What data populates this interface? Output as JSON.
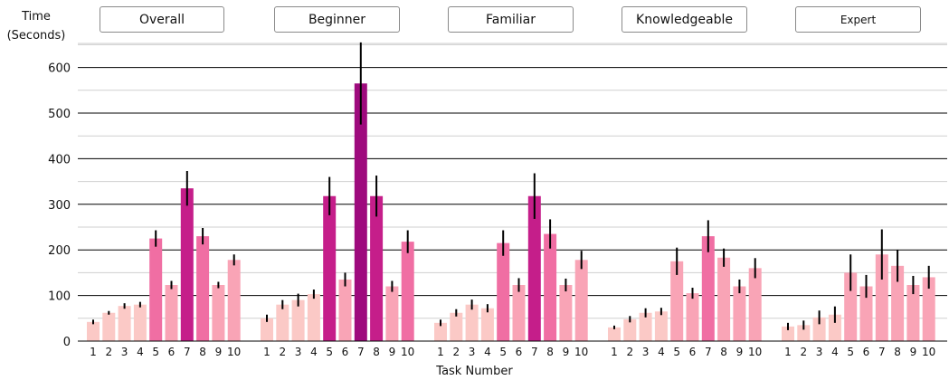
{
  "y_axis_title": [
    "Time",
    "(Seconds)"
  ],
  "x_axis_title": "Task Number",
  "tabs": [
    "Overall",
    "Beginner",
    "Familiar",
    "Knowledgeable",
    "Expert"
  ],
  "colors": {
    "level1": "#fbc9c6",
    "level2": "#f9a4b6",
    "level3": "#f06ea3",
    "level4": "#c51e8a",
    "level5": "#9e0a7d",
    "grid": "#000000",
    "errorbar": "#000000"
  },
  "chart_data": {
    "type": "bar",
    "title": "",
    "xlabel": "Task Number",
    "ylabel": "Time (Seconds)",
    "ylim": [
      0,
      650
    ],
    "yticks": [
      0,
      100,
      200,
      300,
      400,
      500,
      600
    ],
    "categories": [
      "1",
      "2",
      "3",
      "4",
      "5",
      "6",
      "7",
      "8",
      "9",
      "10"
    ],
    "groups": [
      {
        "name": "Overall",
        "values": [
          42,
          62,
          77,
          80,
          225,
          123,
          335,
          230,
          123,
          178
        ],
        "errors": [
          5,
          4,
          6,
          6,
          18,
          9,
          38,
          18,
          7,
          12
        ],
        "color_levels": [
          1,
          1,
          1,
          1,
          3,
          2,
          4,
          3,
          2,
          2
        ]
      },
      {
        "name": "Beginner",
        "values": [
          50,
          80,
          90,
          103,
          318,
          135,
          565,
          318,
          120,
          218
        ],
        "errors": [
          8,
          10,
          14,
          10,
          42,
          15,
          90,
          45,
          12,
          25
        ],
        "color_levels": [
          1,
          1,
          1,
          1,
          4,
          2,
          5,
          4,
          2,
          3
        ]
      },
      {
        "name": "Familiar",
        "values": [
          40,
          62,
          80,
          72,
          215,
          123,
          318,
          235,
          123,
          178
        ],
        "errors": [
          7,
          8,
          11,
          9,
          28,
          15,
          50,
          32,
          14,
          20
        ],
        "color_levels": [
          1,
          1,
          1,
          1,
          3,
          2,
          4,
          3,
          2,
          2
        ]
      },
      {
        "name": "Knowledgeable",
        "values": [
          30,
          48,
          62,
          65,
          175,
          105,
          230,
          183,
          120,
          160
        ],
        "errors": [
          4,
          7,
          10,
          8,
          30,
          12,
          35,
          20,
          15,
          22
        ],
        "color_levels": [
          1,
          1,
          1,
          1,
          2,
          2,
          3,
          2,
          2,
          2
        ]
      },
      {
        "name": "Expert",
        "values": [
          32,
          35,
          52,
          58,
          150,
          120,
          190,
          165,
          123,
          140
        ],
        "errors": [
          8,
          10,
          15,
          18,
          40,
          25,
          55,
          35,
          20,
          25
        ],
        "color_levels": [
          1,
          1,
          1,
          1,
          2,
          2,
          2,
          2,
          2,
          2
        ]
      }
    ]
  }
}
